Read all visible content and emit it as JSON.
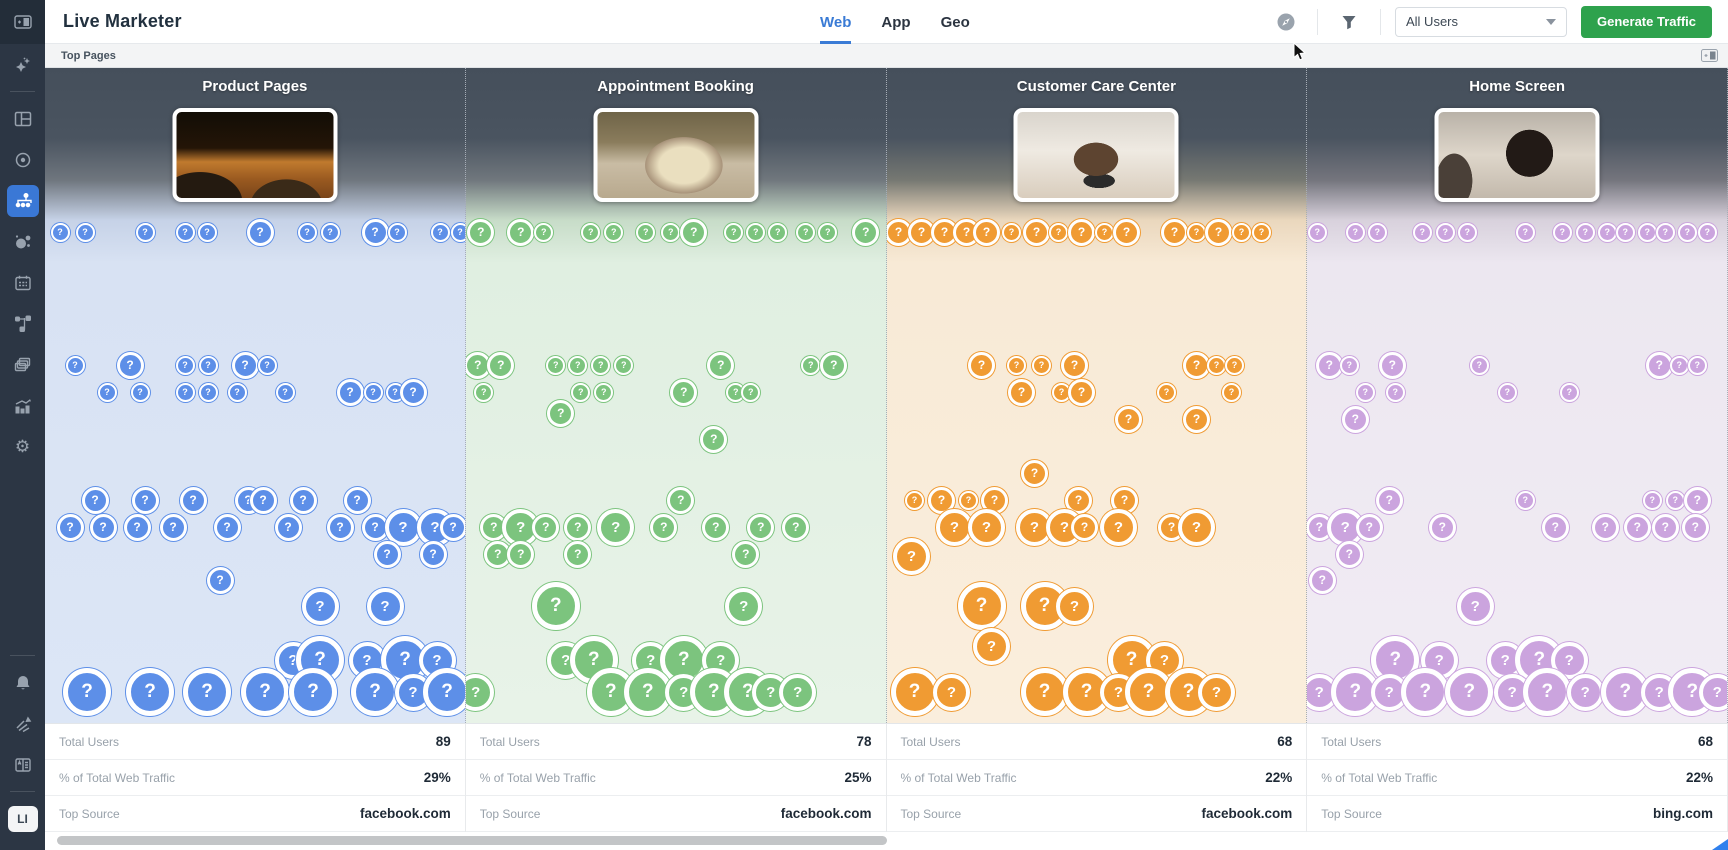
{
  "app": {
    "title": "Live Marketer"
  },
  "header": {
    "tabs": [
      {
        "label": "Web",
        "active": true
      },
      {
        "label": "App",
        "active": false
      },
      {
        "label": "Geo",
        "active": false
      }
    ],
    "icons": [
      "compass-icon",
      "filter-icon"
    ],
    "dropdown": {
      "value": "All Users"
    },
    "generate_button_label": "Generate Traffic"
  },
  "subbar": {
    "title": "Top Pages",
    "icon": "panel-toggle-icon"
  },
  "sidebar": {
    "icons_top": [
      "app-panel-icon",
      "sparkles-icon",
      "dashboard-icon",
      "target-icon",
      "org-chart-icon",
      "bubbles-icon",
      "calendar-icon",
      "flow-icon",
      "layers-icon",
      "trend-chart-icon",
      "gear-icon"
    ],
    "active_icon": "org-chart-icon",
    "icons_bottom": [
      "bell-icon",
      "share-icon",
      "directory-icon"
    ],
    "badge": "LI"
  },
  "stats_labels": {
    "total_users": "Total Users",
    "traffic_pct": "% of Total Web Traffic",
    "top_source": "Top Source"
  },
  "colors": {
    "tab_active": "#3a7bd5",
    "button_green": "#2ea24d",
    "sidebar_active": "#3a78d6",
    "column_blue": "#5d8fe8",
    "column_green": "#7cc47e",
    "column_orange": "#f09b33",
    "column_purple": "#cba4de"
  },
  "columns": [
    {
      "title": "Product Pages",
      "bubble_color": "#5d8fe8",
      "stats": {
        "total_users": "89",
        "traffic_pct": "29%",
        "top_source": "facebook.com"
      },
      "bubbles": [
        [
          15,
          164,
          1
        ],
        [
          40,
          164,
          1
        ],
        [
          100,
          164,
          1
        ],
        [
          140,
          164,
          1
        ],
        [
          162,
          164,
          1
        ],
        [
          215,
          164,
          2
        ],
        [
          262,
          164,
          1
        ],
        [
          285,
          164,
          1
        ],
        [
          330,
          164,
          2
        ],
        [
          352,
          164,
          1
        ],
        [
          395,
          164,
          1
        ],
        [
          415,
          164,
          1
        ],
        [
          30,
          297,
          1
        ],
        [
          85,
          297,
          2
        ],
        [
          140,
          297,
          1
        ],
        [
          163,
          297,
          1
        ],
        [
          200,
          297,
          2
        ],
        [
          222,
          297,
          1
        ],
        [
          62,
          324,
          1
        ],
        [
          95,
          324,
          1
        ],
        [
          140,
          324,
          1
        ],
        [
          163,
          324,
          1
        ],
        [
          192,
          324,
          1
        ],
        [
          240,
          324,
          1
        ],
        [
          305,
          324,
          2
        ],
        [
          328,
          324,
          1
        ],
        [
          350,
          324,
          1
        ],
        [
          368,
          324,
          2
        ],
        [
          50,
          432,
          2
        ],
        [
          100,
          432,
          2
        ],
        [
          148,
          432,
          2
        ],
        [
          203,
          432,
          2
        ],
        [
          218,
          432,
          2
        ],
        [
          258,
          432,
          2
        ],
        [
          312,
          432,
          2
        ],
        [
          25,
          459,
          2
        ],
        [
          58,
          459,
          2
        ],
        [
          92,
          459,
          2
        ],
        [
          128,
          459,
          2
        ],
        [
          182,
          459,
          2
        ],
        [
          243,
          459,
          2
        ],
        [
          295,
          459,
          2
        ],
        [
          330,
          459,
          2
        ],
        [
          358,
          459,
          3
        ],
        [
          390,
          459,
          3
        ],
        [
          408,
          459,
          2
        ],
        [
          342,
          486,
          2
        ],
        [
          388,
          486,
          2
        ],
        [
          175,
          512,
          2
        ],
        [
          275,
          538,
          3
        ],
        [
          340,
          538,
          3
        ],
        [
          248,
          592,
          3
        ],
        [
          275,
          592,
          4
        ],
        [
          322,
          592,
          3
        ],
        [
          360,
          592,
          4
        ],
        [
          392,
          592,
          3
        ],
        [
          42,
          624,
          4
        ],
        [
          105,
          624,
          4
        ],
        [
          162,
          624,
          4
        ],
        [
          220,
          624,
          4
        ],
        [
          268,
          624,
          4
        ],
        [
          330,
          624,
          4
        ],
        [
          368,
          624,
          3
        ],
        [
          402,
          624,
          4
        ]
      ]
    },
    {
      "title": "Appointment Booking",
      "bubble_color": "#7cc47e",
      "stats": {
        "total_users": "78",
        "traffic_pct": "25%",
        "top_source": "facebook.com"
      },
      "bubbles": [
        [
          15,
          164,
          2
        ],
        [
          55,
          164,
          2
        ],
        [
          78,
          164,
          1
        ],
        [
          125,
          164,
          1
        ],
        [
          148,
          164,
          1
        ],
        [
          180,
          164,
          1
        ],
        [
          205,
          164,
          1
        ],
        [
          228,
          164,
          2
        ],
        [
          268,
          164,
          1
        ],
        [
          290,
          164,
          1
        ],
        [
          312,
          164,
          1
        ],
        [
          340,
          164,
          1
        ],
        [
          362,
          164,
          1
        ],
        [
          400,
          164,
          2
        ],
        [
          12,
          297,
          2
        ],
        [
          35,
          297,
          2
        ],
        [
          90,
          297,
          1
        ],
        [
          112,
          297,
          1
        ],
        [
          135,
          297,
          1
        ],
        [
          158,
          297,
          1
        ],
        [
          255,
          297,
          2
        ],
        [
          345,
          297,
          1
        ],
        [
          368,
          297,
          2
        ],
        [
          18,
          324,
          1
        ],
        [
          115,
          324,
          1
        ],
        [
          138,
          324,
          1
        ],
        [
          218,
          324,
          2
        ],
        [
          270,
          324,
          1
        ],
        [
          285,
          324,
          1
        ],
        [
          95,
          345,
          2
        ],
        [
          248,
          371,
          2
        ],
        [
          215,
          432,
          2
        ],
        [
          28,
          459,
          2
        ],
        [
          55,
          459,
          3
        ],
        [
          80,
          459,
          2
        ],
        [
          112,
          459,
          2
        ],
        [
          150,
          459,
          3
        ],
        [
          198,
          459,
          2
        ],
        [
          250,
          459,
          2
        ],
        [
          295,
          459,
          2
        ],
        [
          330,
          459,
          2
        ],
        [
          32,
          486,
          2
        ],
        [
          55,
          486,
          2
        ],
        [
          112,
          486,
          2
        ],
        [
          280,
          486,
          2
        ],
        [
          90,
          538,
          4
        ],
        [
          278,
          538,
          3
        ],
        [
          100,
          592,
          3
        ],
        [
          128,
          592,
          4
        ],
        [
          185,
          592,
          3
        ],
        [
          218,
          592,
          4
        ],
        [
          255,
          592,
          3
        ],
        [
          10,
          624,
          3
        ],
        [
          145,
          624,
          4
        ],
        [
          182,
          624,
          4
        ],
        [
          218,
          624,
          3
        ],
        [
          248,
          624,
          4
        ],
        [
          282,
          624,
          4
        ],
        [
          305,
          624,
          3
        ],
        [
          332,
          624,
          3
        ]
      ]
    },
    {
      "title": "Customer Care Center",
      "bubble_color": "#f09b33",
      "stats": {
        "total_users": "68",
        "traffic_pct": "22%",
        "top_source": "facebook.com"
      },
      "bubbles": [
        [
          12,
          164,
          2
        ],
        [
          35,
          164,
          2
        ],
        [
          58,
          164,
          2
        ],
        [
          80,
          164,
          2
        ],
        [
          100,
          164,
          2
        ],
        [
          125,
          164,
          1
        ],
        [
          150,
          164,
          2
        ],
        [
          172,
          164,
          1
        ],
        [
          195,
          164,
          2
        ],
        [
          218,
          164,
          1
        ],
        [
          240,
          164,
          2
        ],
        [
          288,
          164,
          2
        ],
        [
          310,
          164,
          1
        ],
        [
          332,
          164,
          2
        ],
        [
          355,
          164,
          1
        ],
        [
          375,
          164,
          1
        ],
        [
          95,
          297,
          2
        ],
        [
          130,
          297,
          1
        ],
        [
          155,
          297,
          1
        ],
        [
          188,
          297,
          2
        ],
        [
          310,
          297,
          2
        ],
        [
          330,
          297,
          1
        ],
        [
          348,
          297,
          1
        ],
        [
          135,
          324,
          2
        ],
        [
          175,
          324,
          1
        ],
        [
          195,
          324,
          2
        ],
        [
          280,
          324,
          1
        ],
        [
          345,
          324,
          1
        ],
        [
          242,
          351,
          2
        ],
        [
          310,
          351,
          2
        ],
        [
          148,
          405,
          2
        ],
        [
          28,
          432,
          1
        ],
        [
          55,
          432,
          2
        ],
        [
          82,
          432,
          1
        ],
        [
          108,
          432,
          2
        ],
        [
          192,
          432,
          2
        ],
        [
          238,
          432,
          2
        ],
        [
          68,
          459,
          3
        ],
        [
          100,
          459,
          3
        ],
        [
          148,
          459,
          3
        ],
        [
          178,
          459,
          3
        ],
        [
          198,
          459,
          2
        ],
        [
          232,
          459,
          3
        ],
        [
          285,
          459,
          2
        ],
        [
          310,
          459,
          3
        ],
        [
          25,
          488,
          3
        ],
        [
          95,
          538,
          4
        ],
        [
          158,
          538,
          4
        ],
        [
          188,
          538,
          3
        ],
        [
          105,
          578,
          3
        ],
        [
          245,
          592,
          4
        ],
        [
          278,
          592,
          3
        ],
        [
          28,
          624,
          4
        ],
        [
          65,
          624,
          3
        ],
        [
          158,
          624,
          4
        ],
        [
          200,
          624,
          4
        ],
        [
          232,
          624,
          3
        ],
        [
          262,
          624,
          4
        ],
        [
          302,
          624,
          4
        ],
        [
          330,
          624,
          3
        ]
      ]
    },
    {
      "title": "Home Screen",
      "bubble_color": "#cba4de",
      "stats": {
        "total_users": "68",
        "traffic_pct": "22%",
        "top_source": "bing.com"
      },
      "bubbles": [
        [
          10,
          164,
          1
        ],
        [
          48,
          164,
          1
        ],
        [
          70,
          164,
          1
        ],
        [
          115,
          164,
          1
        ],
        [
          138,
          164,
          1
        ],
        [
          160,
          164,
          1
        ],
        [
          218,
          164,
          1
        ],
        [
          255,
          164,
          1
        ],
        [
          278,
          164,
          1
        ],
        [
          300,
          164,
          1
        ],
        [
          318,
          164,
          1
        ],
        [
          340,
          164,
          1
        ],
        [
          358,
          164,
          1
        ],
        [
          380,
          164,
          1
        ],
        [
          400,
          164,
          1
        ],
        [
          22,
          297,
          2
        ],
        [
          42,
          297,
          1
        ],
        [
          85,
          297,
          2
        ],
        [
          172,
          297,
          1
        ],
        [
          352,
          297,
          2
        ],
        [
          372,
          297,
          1
        ],
        [
          390,
          297,
          1
        ],
        [
          58,
          324,
          1
        ],
        [
          88,
          324,
          1
        ],
        [
          200,
          324,
          1
        ],
        [
          262,
          324,
          1
        ],
        [
          48,
          351,
          2
        ],
        [
          82,
          432,
          2
        ],
        [
          218,
          432,
          1
        ],
        [
          345,
          432,
          1
        ],
        [
          368,
          432,
          1
        ],
        [
          390,
          432,
          2
        ],
        [
          12,
          459,
          2
        ],
        [
          38,
          459,
          3
        ],
        [
          62,
          459,
          2
        ],
        [
          135,
          459,
          2
        ],
        [
          248,
          459,
          2
        ],
        [
          298,
          459,
          2
        ],
        [
          330,
          459,
          2
        ],
        [
          358,
          459,
          2
        ],
        [
          388,
          459,
          2
        ],
        [
          42,
          486,
          2
        ],
        [
          15,
          512,
          2
        ],
        [
          168,
          538,
          3
        ],
        [
          88,
          592,
          4
        ],
        [
          132,
          592,
          3
        ],
        [
          198,
          592,
          3
        ],
        [
          232,
          592,
          4
        ],
        [
          262,
          592,
          3
        ],
        [
          12,
          624,
          3
        ],
        [
          48,
          624,
          4
        ],
        [
          82,
          624,
          3
        ],
        [
          118,
          624,
          4
        ],
        [
          162,
          624,
          4
        ],
        [
          205,
          624,
          3
        ],
        [
          240,
          624,
          4
        ],
        [
          278,
          624,
          3
        ],
        [
          318,
          624,
          4
        ],
        [
          352,
          624,
          3
        ],
        [
          385,
          624,
          4
        ],
        [
          410,
          624,
          3
        ]
      ]
    }
  ]
}
